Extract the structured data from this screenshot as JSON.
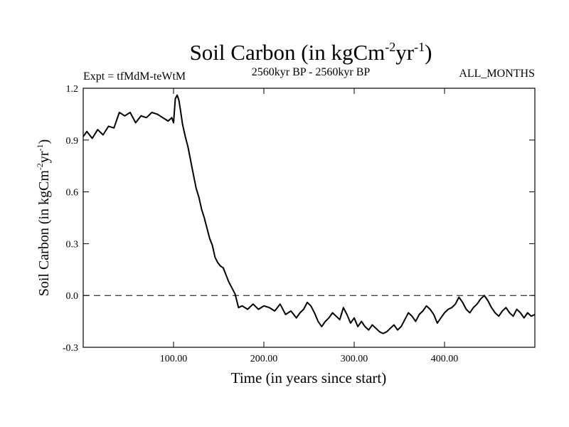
{
  "chart_data": {
    "type": "line",
    "title": "Soil Carbon (in kgCm",
    "title_unit_exp1": "-2",
    "title_unit_mid": "yr",
    "title_unit_exp2": "-1",
    "title_close": ")",
    "subtitle_left": "Expt = tfMdM-teWtM",
    "subtitle_center": "2560kyr BP - 2560kyr BP",
    "subtitle_right": "ALL_MONTHS",
    "xlabel": "Time (in years since start)",
    "ylabel": "Soil Carbon (in kgCm",
    "ylabel_exp1": "-2",
    "ylabel_mid": "yr",
    "ylabel_exp2": "-1",
    "ylabel_close": ")",
    "xlim": [
      0,
      500
    ],
    "ylim": [
      -0.3,
      1.2
    ],
    "xticks": [
      100,
      200,
      300,
      400
    ],
    "xtick_labels": [
      "100.00",
      "200.00",
      "300.00",
      "400.00"
    ],
    "yticks": [
      -0.3,
      0.0,
      0.3,
      0.6,
      0.9,
      1.2
    ],
    "ytick_labels": [
      "-0.3",
      "0.0",
      "0.3",
      "0.6",
      "0.9",
      "1.2"
    ],
    "reference_line": 0.0,
    "series": [
      {
        "name": "Soil Carbon",
        "x": [
          0,
          4,
          10,
          16,
          22,
          28,
          34,
          40,
          46,
          52,
          58,
          64,
          70,
          76,
          82,
          88,
          94,
          98,
          100,
          102,
          104,
          106,
          108,
          110,
          113,
          116,
          119,
          122,
          125,
          128,
          131,
          134,
          137,
          140,
          143,
          146,
          149,
          152,
          155,
          158,
          161,
          164,
          166,
          168,
          170,
          172,
          176,
          182,
          188,
          194,
          200,
          206,
          212,
          218,
          224,
          230,
          236,
          240,
          244,
          248,
          252,
          256,
          260,
          264,
          268,
          272,
          276,
          280,
          284,
          288,
          292,
          296,
          300,
          304,
          308,
          312,
          316,
          320,
          324,
          328,
          332,
          336,
          340,
          344,
          348,
          352,
          356,
          360,
          364,
          368,
          372,
          376,
          380,
          384,
          388,
          392,
          396,
          400,
          404,
          408,
          412,
          416,
          420,
          424,
          428,
          432,
          436,
          440,
          444,
          448,
          452,
          456,
          460,
          464,
          468,
          472,
          476,
          480,
          484,
          488,
          492,
          496,
          500
        ],
        "values": [
          0.92,
          0.95,
          0.91,
          0.96,
          0.93,
          0.98,
          0.97,
          1.06,
          1.04,
          1.06,
          1.0,
          1.04,
          1.03,
          1.06,
          1.05,
          1.03,
          1.01,
          1.03,
          1.0,
          1.14,
          1.16,
          1.13,
          1.06,
          0.99,
          0.92,
          0.86,
          0.78,
          0.7,
          0.62,
          0.57,
          0.5,
          0.45,
          0.39,
          0.33,
          0.29,
          0.22,
          0.19,
          0.17,
          0.16,
          0.12,
          0.08,
          0.05,
          0.03,
          0.01,
          -0.03,
          -0.07,
          -0.06,
          -0.08,
          -0.05,
          -0.08,
          -0.06,
          -0.07,
          -0.09,
          -0.05,
          -0.11,
          -0.09,
          -0.13,
          -0.1,
          -0.08,
          -0.04,
          -0.06,
          -0.1,
          -0.15,
          -0.18,
          -0.15,
          -0.13,
          -0.1,
          -0.12,
          -0.14,
          -0.07,
          -0.11,
          -0.16,
          -0.13,
          -0.18,
          -0.15,
          -0.18,
          -0.2,
          -0.17,
          -0.19,
          -0.21,
          -0.22,
          -0.21,
          -0.19,
          -0.17,
          -0.2,
          -0.18,
          -0.14,
          -0.1,
          -0.12,
          -0.15,
          -0.11,
          -0.09,
          -0.06,
          -0.08,
          -0.11,
          -0.16,
          -0.13,
          -0.1,
          -0.08,
          -0.07,
          -0.05,
          -0.01,
          -0.04,
          -0.08,
          -0.1,
          -0.07,
          -0.05,
          -0.02,
          0.0,
          -0.03,
          -0.07,
          -0.1,
          -0.12,
          -0.09,
          -0.07,
          -0.1,
          -0.12,
          -0.08,
          -0.1,
          -0.13,
          -0.1,
          -0.12,
          -0.11
        ]
      }
    ]
  }
}
